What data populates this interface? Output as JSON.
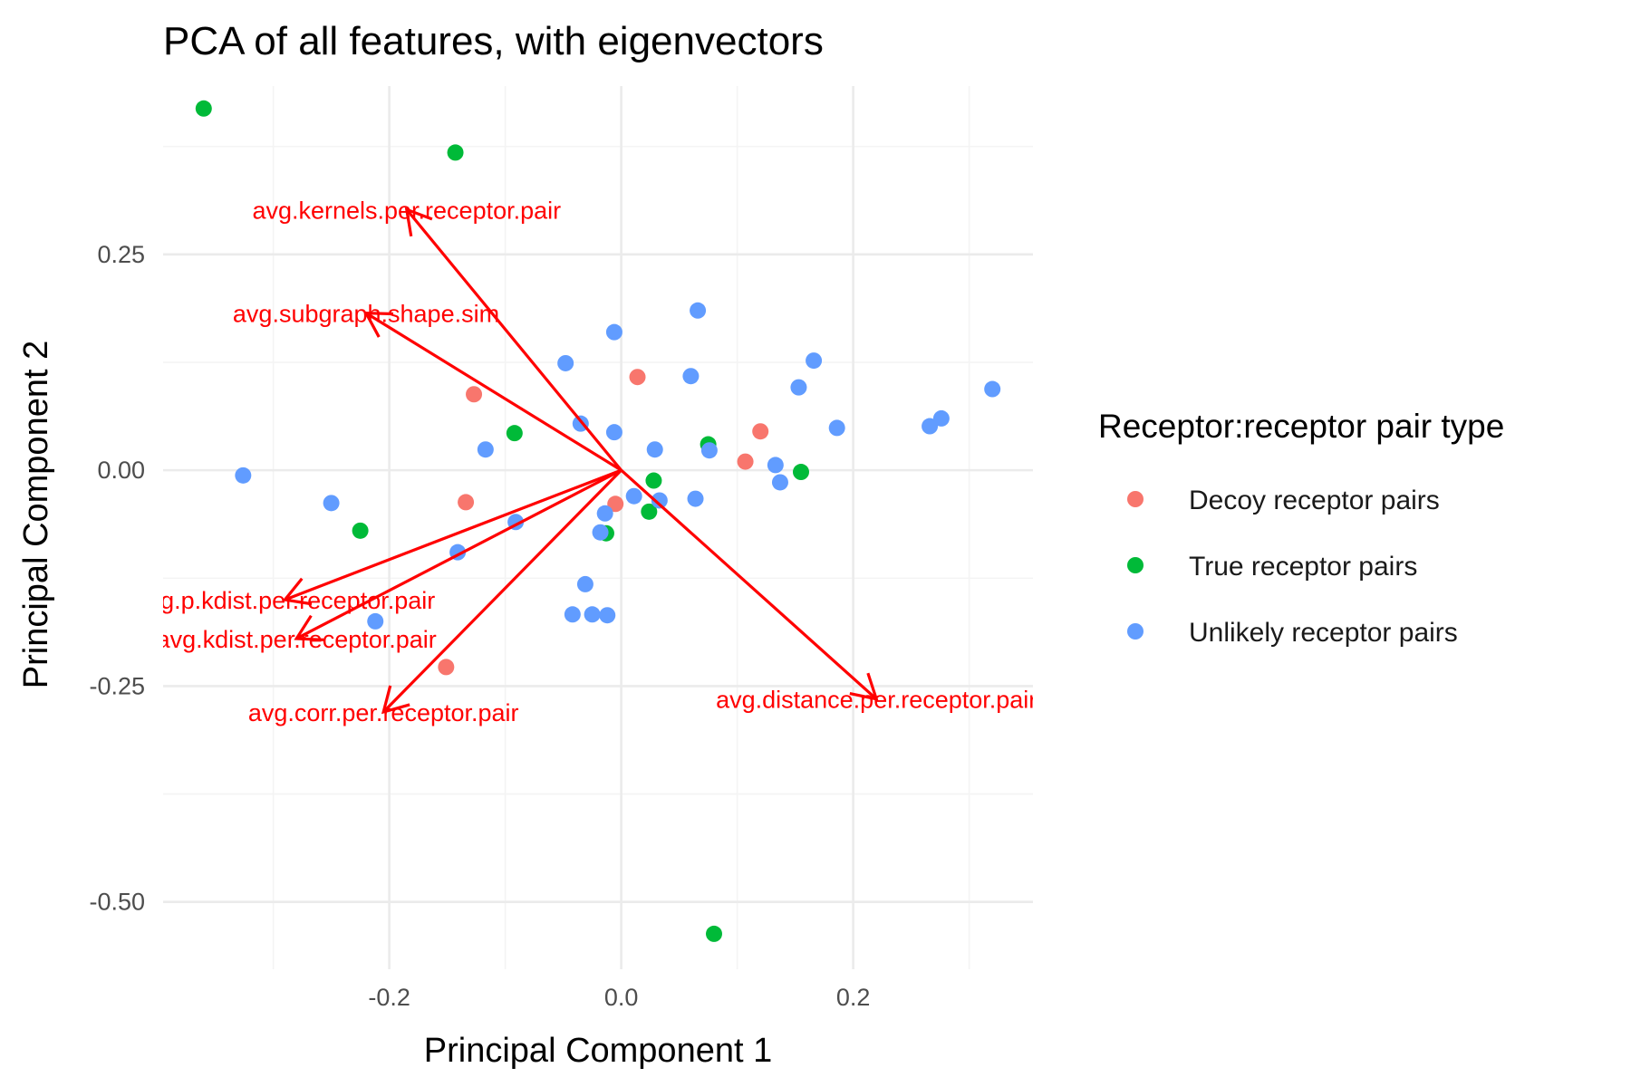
{
  "chart_data": {
    "type": "scatter",
    "title": "PCA of all features, with eigenvectors",
    "xlabel": "Principal Component 1",
    "ylabel": "Principal Component 2",
    "xlim": [
      -0.395,
      0.355
    ],
    "ylim": [
      -0.578,
      0.445
    ],
    "x_ticks": [
      -0.2,
      0.0,
      0.2
    ],
    "x_tick_labels": [
      "-0.2",
      "0.0",
      "0.2"
    ],
    "y_ticks": [
      0.25,
      0.0,
      -0.25,
      -0.5
    ],
    "y_tick_labels": [
      "0.25",
      "0.00",
      "-0.25",
      "-0.50"
    ],
    "grid": true,
    "legend": {
      "title": "Receptor:receptor pair type",
      "position": "right"
    },
    "series": [
      {
        "name": "Decoy receptor pairs",
        "color": "#F8766D",
        "points": [
          {
            "x": -0.127,
            "y": 0.088
          },
          {
            "x": 0.014,
            "y": 0.108
          },
          {
            "x": 0.12,
            "y": 0.045
          },
          {
            "x": 0.107,
            "y": 0.01
          },
          {
            "x": -0.134,
            "y": -0.037
          },
          {
            "x": -0.005,
            "y": -0.039
          },
          {
            "x": -0.151,
            "y": -0.228
          }
        ]
      },
      {
        "name": "True receptor pairs",
        "color": "#00BA38",
        "points": [
          {
            "x": -0.36,
            "y": 0.419
          },
          {
            "x": -0.143,
            "y": 0.368
          },
          {
            "x": -0.092,
            "y": 0.043
          },
          {
            "x": 0.075,
            "y": 0.03
          },
          {
            "x": 0.028,
            "y": -0.012
          },
          {
            "x": 0.155,
            "y": -0.002
          },
          {
            "x": -0.225,
            "y": -0.07
          },
          {
            "x": 0.024,
            "y": -0.048
          },
          {
            "x": -0.013,
            "y": -0.073
          },
          {
            "x": 0.08,
            "y": -0.537
          }
        ]
      },
      {
        "name": "Unlikely receptor pairs",
        "color": "#619CFF",
        "points": [
          {
            "x": -0.326,
            "y": -0.006
          },
          {
            "x": -0.25,
            "y": -0.038
          },
          {
            "x": -0.212,
            "y": -0.175
          },
          {
            "x": -0.141,
            "y": -0.095
          },
          {
            "x": -0.117,
            "y": 0.024
          },
          {
            "x": -0.091,
            "y": -0.06
          },
          {
            "x": -0.048,
            "y": 0.124
          },
          {
            "x": -0.035,
            "y": 0.054
          },
          {
            "x": -0.031,
            "y": -0.132
          },
          {
            "x": -0.042,
            "y": -0.167
          },
          {
            "x": -0.025,
            "y": -0.167
          },
          {
            "x": -0.012,
            "y": -0.168
          },
          {
            "x": -0.018,
            "y": -0.072
          },
          {
            "x": -0.014,
            "y": -0.05
          },
          {
            "x": -0.006,
            "y": 0.16
          },
          {
            "x": -0.006,
            "y": 0.044
          },
          {
            "x": 0.011,
            "y": -0.03
          },
          {
            "x": 0.029,
            "y": 0.024
          },
          {
            "x": 0.033,
            "y": -0.035
          },
          {
            "x": 0.06,
            "y": 0.109
          },
          {
            "x": 0.066,
            "y": 0.185
          },
          {
            "x": 0.064,
            "y": -0.033
          },
          {
            "x": 0.076,
            "y": 0.023
          },
          {
            "x": 0.133,
            "y": 0.006
          },
          {
            "x": 0.137,
            "y": -0.014
          },
          {
            "x": 0.153,
            "y": 0.096
          },
          {
            "x": 0.166,
            "y": 0.127
          },
          {
            "x": 0.186,
            "y": 0.049
          },
          {
            "x": 0.266,
            "y": 0.051
          },
          {
            "x": 0.276,
            "y": 0.06
          },
          {
            "x": 0.32,
            "y": 0.094
          }
        ]
      }
    ],
    "eigenvectors": {
      "color": "#FF0000",
      "origin": {
        "x": 0.0,
        "y": 0.0
      },
      "vectors": [
        {
          "label": "avg.kernels.per.receptor.pair",
          "x": -0.185,
          "y": 0.302
        },
        {
          "label": "avg.subgraph.shape.sim",
          "x": -0.22,
          "y": 0.182
        },
        {
          "label": "avg.p.kdist.per.receptor.pair",
          "x": -0.29,
          "y": -0.15
        },
        {
          "label": "avg.kdist.per.receptor.pair",
          "x": -0.28,
          "y": -0.195
        },
        {
          "label": "avg.corr.per.receptor.pair",
          "x": -0.205,
          "y": -0.28
        },
        {
          "label": "avg.distance.per.receptor.pair",
          "x": 0.22,
          "y": -0.265
        }
      ]
    }
  }
}
